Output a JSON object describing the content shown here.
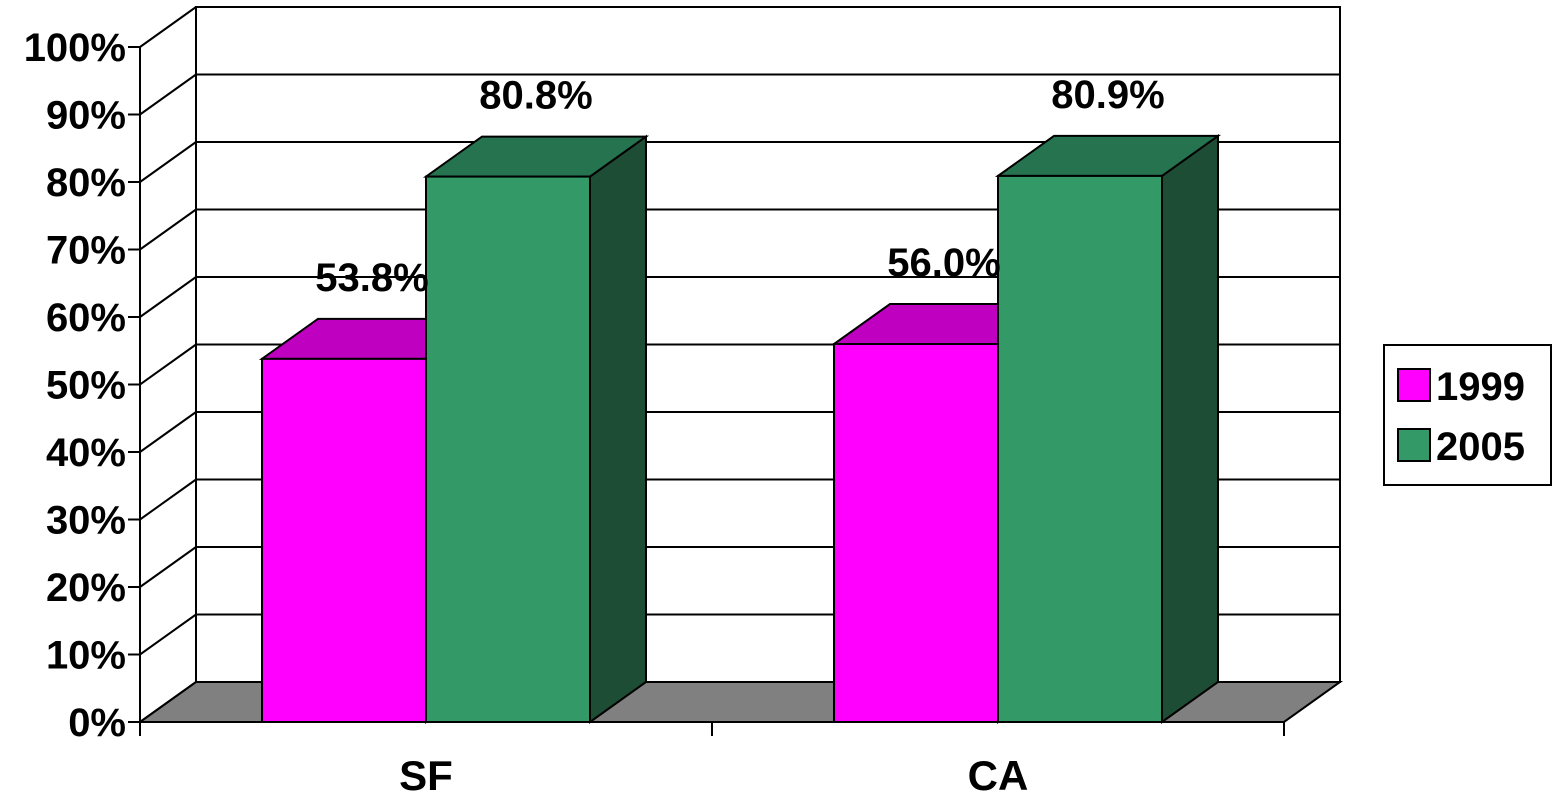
{
  "chart_data": {
    "type": "bar",
    "categories": [
      "SF",
      "CA"
    ],
    "series": [
      {
        "name": "1999",
        "values": [
          53.8,
          56.0
        ],
        "color": "#ff00ff",
        "top_color": "#c000c0",
        "side_color": "#a000a0"
      },
      {
        "name": "2005",
        "values": [
          80.8,
          80.9
        ],
        "color": "#339966",
        "top_color": "#267350",
        "side_color": "#1e4d35"
      }
    ],
    "data_labels": [
      [
        "53.8%",
        "56.0%"
      ],
      [
        "80.8%",
        "80.9%"
      ]
    ],
    "ylim": [
      0,
      100
    ],
    "yticks": [
      "0%",
      "10%",
      "20%",
      "30%",
      "40%",
      "50%",
      "60%",
      "70%",
      "80%",
      "90%",
      "100%"
    ],
    "title": "",
    "xlabel": "",
    "ylabel": "",
    "grid": true,
    "legend": "right",
    "floor_color": "#808080"
  }
}
